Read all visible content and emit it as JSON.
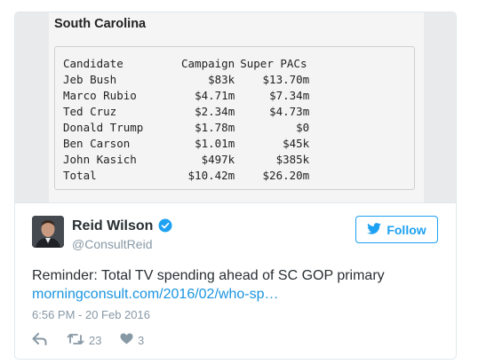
{
  "media": {
    "title": "South Carolina",
    "headers": [
      "Candidate",
      "Campaign",
      "Super PACs"
    ],
    "rows": [
      [
        "Jeb Bush",
        "$83k",
        "$13.70m"
      ],
      [
        "Marco Rubio",
        "$4.71m",
        "$7.34m"
      ],
      [
        "Ted Cruz",
        "$2.34m",
        "$4.73m"
      ],
      [
        "Donald Trump",
        "$1.78m",
        "$0"
      ],
      [
        "Ben Carson",
        "$1.01m",
        "$45k"
      ],
      [
        "John Kasich",
        "$497k",
        "$385k"
      ],
      [
        "Total",
        "$10.42m",
        "$26.20m"
      ]
    ]
  },
  "author": {
    "name": "Reid Wilson",
    "handle": "@ConsultReid",
    "verified": true
  },
  "follow_button": {
    "label": "Follow"
  },
  "tweet": {
    "text": "Reminder: Total TV spending ahead of SC GOP primary",
    "link": "morningconsult.com/2016/02/who-sp…",
    "timestamp": "6:56 PM - 20 Feb 2016"
  },
  "actions": {
    "reply_icon": "reply-icon",
    "retweet_count": "23",
    "like_count": "3"
  },
  "colors": {
    "accent": "#1da1f2",
    "link": "#1b95e0",
    "muted": "#8899a6"
  }
}
